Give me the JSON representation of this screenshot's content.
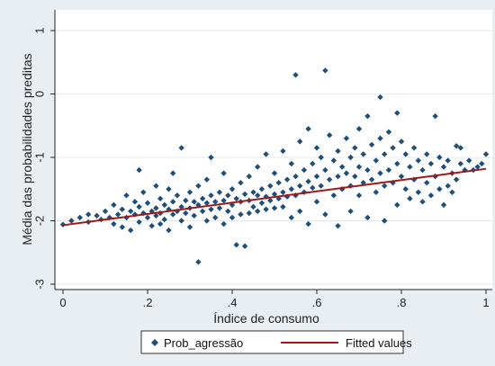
{
  "chart_data": {
    "type": "scatter",
    "title": "",
    "xlabel": "Índice de consumo",
    "ylabel": "Média das probabilidades preditas",
    "xlim": [
      0,
      1
    ],
    "ylim": [
      -3,
      1
    ],
    "x_ticks": [
      {
        "value": 0,
        "label": "0"
      },
      {
        "value": 0.2,
        "label": ".2"
      },
      {
        "value": 0.4,
        "label": ".4"
      },
      {
        "value": 0.6,
        "label": ".6"
      },
      {
        "value": 0.8,
        "label": ".8"
      },
      {
        "value": 1,
        "label": "1"
      }
    ],
    "y_ticks": [
      {
        "value": -3,
        "label": "-3"
      },
      {
        "value": -2,
        "label": "-2"
      },
      {
        "value": -1,
        "label": "-1"
      },
      {
        "value": 0,
        "label": "0"
      },
      {
        "value": 1,
        "label": "1"
      }
    ],
    "grid": true,
    "legend_position": "bottom",
    "series": [
      {
        "name": "Prob_agressão",
        "type": "scatter",
        "marker": "diamond",
        "color": "#1f4e79",
        "points": [
          [
            0.0,
            -2.06
          ],
          [
            0.02,
            -2.0
          ],
          [
            0.04,
            -1.95
          ],
          [
            0.06,
            -2.02
          ],
          [
            0.06,
            -1.9
          ],
          [
            0.08,
            -1.92
          ],
          [
            0.09,
            -1.98
          ],
          [
            0.1,
            -1.85
          ],
          [
            0.11,
            -1.95
          ],
          [
            0.12,
            -2.05
          ],
          [
            0.12,
            -1.75
          ],
          [
            0.13,
            -1.9
          ],
          [
            0.14,
            -1.82
          ],
          [
            0.14,
            -2.1
          ],
          [
            0.15,
            -1.6
          ],
          [
            0.15,
            -1.95
          ],
          [
            0.16,
            -1.85
          ],
          [
            0.16,
            -2.15
          ],
          [
            0.17,
            -1.7
          ],
          [
            0.17,
            -1.9
          ],
          [
            0.18,
            -1.2
          ],
          [
            0.18,
            -1.78
          ],
          [
            0.18,
            -2.02
          ],
          [
            0.19,
            -1.88
          ],
          [
            0.19,
            -1.55
          ],
          [
            0.2,
            -1.95
          ],
          [
            0.2,
            -1.72
          ],
          [
            0.21,
            -1.85
          ],
          [
            0.21,
            -2.08
          ],
          [
            0.22,
            -1.45
          ],
          [
            0.22,
            -1.8
          ],
          [
            0.22,
            -1.92
          ],
          [
            0.23,
            -1.65
          ],
          [
            0.23,
            -1.88
          ],
          [
            0.23,
            -2.05
          ],
          [
            0.24,
            -1.75
          ],
          [
            0.24,
            -1.98
          ],
          [
            0.25,
            -1.5
          ],
          [
            0.25,
            -1.82
          ],
          [
            0.25,
            -2.15
          ],
          [
            0.26,
            -1.7
          ],
          [
            0.26,
            -1.9
          ],
          [
            0.26,
            -1.25
          ],
          [
            0.27,
            -1.85
          ],
          [
            0.27,
            -1.6
          ],
          [
            0.28,
            -1.78
          ],
          [
            0.28,
            -2.0
          ],
          [
            0.28,
            -0.85
          ],
          [
            0.29,
            -1.68
          ],
          [
            0.29,
            -1.88
          ],
          [
            0.3,
            -1.55
          ],
          [
            0.3,
            -1.8
          ],
          [
            0.3,
            -2.1
          ],
          [
            0.31,
            -1.7
          ],
          [
            0.31,
            -1.92
          ],
          [
            0.32,
            -1.45
          ],
          [
            0.32,
            -1.75
          ],
          [
            0.32,
            -2.65
          ],
          [
            0.33,
            -1.65
          ],
          [
            0.33,
            -1.85
          ],
          [
            0.34,
            -1.35
          ],
          [
            0.34,
            -1.72
          ],
          [
            0.34,
            -2.0
          ],
          [
            0.35,
            -1.6
          ],
          [
            0.35,
            -1.82
          ],
          [
            0.35,
            -1.0
          ],
          [
            0.36,
            -1.7
          ],
          [
            0.36,
            -1.95
          ],
          [
            0.37,
            -1.55
          ],
          [
            0.37,
            -1.8
          ],
          [
            0.38,
            -1.25
          ],
          [
            0.38,
            -1.68
          ],
          [
            0.38,
            -2.05
          ],
          [
            0.39,
            -1.6
          ],
          [
            0.39,
            -1.85
          ],
          [
            0.4,
            -1.5
          ],
          [
            0.4,
            -1.75
          ],
          [
            0.4,
            -1.95
          ],
          [
            0.41,
            -1.65
          ],
          [
            0.41,
            -2.38
          ],
          [
            0.42,
            -1.4
          ],
          [
            0.42,
            -1.7
          ],
          [
            0.42,
            -1.9
          ],
          [
            0.43,
            -1.58
          ],
          [
            0.43,
            -2.4
          ],
          [
            0.44,
            -1.3
          ],
          [
            0.44,
            -1.68
          ],
          [
            0.44,
            -1.88
          ],
          [
            0.45,
            -1.55
          ],
          [
            0.45,
            -1.78
          ],
          [
            0.46,
            -1.15
          ],
          [
            0.46,
            -1.6
          ],
          [
            0.46,
            -1.85
          ],
          [
            0.47,
            -1.5
          ],
          [
            0.47,
            -1.72
          ],
          [
            0.48,
            -0.95
          ],
          [
            0.48,
            -1.62
          ],
          [
            0.48,
            -1.82
          ],
          [
            0.49,
            -1.45
          ],
          [
            0.49,
            -1.68
          ],
          [
            0.5,
            -1.25
          ],
          [
            0.5,
            -1.58
          ],
          [
            0.5,
            -1.8
          ],
          [
            0.51,
            -1.4
          ],
          [
            0.51,
            -1.65
          ],
          [
            0.52,
            -0.9
          ],
          [
            0.52,
            -1.55
          ],
          [
            0.52,
            -1.78
          ],
          [
            0.53,
            -1.35
          ],
          [
            0.53,
            -1.62
          ],
          [
            0.54,
            -1.1
          ],
          [
            0.54,
            -1.5
          ],
          [
            0.54,
            -1.95
          ],
          [
            0.55,
            0.3
          ],
          [
            0.55,
            -1.3
          ],
          [
            0.55,
            -1.6
          ],
          [
            0.56,
            -0.75
          ],
          [
            0.56,
            -1.45
          ],
          [
            0.56,
            -1.85
          ],
          [
            0.57,
            -1.2
          ],
          [
            0.57,
            -1.55
          ],
          [
            0.58,
            -0.55
          ],
          [
            0.58,
            -1.38
          ],
          [
            0.58,
            -2.05
          ],
          [
            0.59,
            -1.1
          ],
          [
            0.59,
            -1.48
          ],
          [
            0.6,
            -0.85
          ],
          [
            0.6,
            -1.3
          ],
          [
            0.6,
            -1.7
          ],
          [
            0.61,
            -1.0
          ],
          [
            0.61,
            -1.45
          ],
          [
            0.62,
            0.37
          ],
          [
            0.62,
            -1.2
          ],
          [
            0.62,
            -1.9
          ],
          [
            0.63,
            -0.65
          ],
          [
            0.63,
            -1.35
          ],
          [
            0.64,
            -1.05
          ],
          [
            0.64,
            -1.6
          ],
          [
            0.65,
            -0.9
          ],
          [
            0.65,
            -1.3
          ],
          [
            0.65,
            -2.08
          ],
          [
            0.66,
            -1.15
          ],
          [
            0.66,
            -1.5
          ],
          [
            0.67,
            -0.7
          ],
          [
            0.67,
            -1.25
          ],
          [
            0.68,
            -1.0
          ],
          [
            0.68,
            -1.45
          ],
          [
            0.68,
            -1.85
          ],
          [
            0.69,
            -0.85
          ],
          [
            0.69,
            -1.3
          ],
          [
            0.7,
            -0.55
          ],
          [
            0.7,
            -1.15
          ],
          [
            0.7,
            -1.6
          ],
          [
            0.71,
            -0.95
          ],
          [
            0.71,
            -1.4
          ],
          [
            0.72,
            -0.35
          ],
          [
            0.72,
            -1.2
          ],
          [
            0.72,
            -1.95
          ],
          [
            0.73,
            -0.8
          ],
          [
            0.73,
            -1.35
          ],
          [
            0.74,
            -1.05
          ],
          [
            0.74,
            -1.55
          ],
          [
            0.75,
            -0.05
          ],
          [
            0.75,
            -0.7
          ],
          [
            0.75,
            -1.25
          ],
          [
            0.76,
            -0.95
          ],
          [
            0.76,
            -1.45
          ],
          [
            0.76,
            -2.0
          ],
          [
            0.77,
            -0.6
          ],
          [
            0.77,
            -1.2
          ],
          [
            0.78,
            -0.85
          ],
          [
            0.78,
            -1.4
          ],
          [
            0.79,
            -0.3
          ],
          [
            0.79,
            -1.1
          ],
          [
            0.79,
            -1.75
          ],
          [
            0.8,
            -0.75
          ],
          [
            0.8,
            -1.3
          ],
          [
            0.81,
            -0.95
          ],
          [
            0.81,
            -1.5
          ],
          [
            0.82,
            -1.15
          ],
          [
            0.82,
            -1.65
          ],
          [
            0.83,
            -0.85
          ],
          [
            0.83,
            -1.35
          ],
          [
            0.84,
            -1.05
          ],
          [
            0.84,
            -1.55
          ],
          [
            0.85,
            -1.2
          ],
          [
            0.85,
            -1.7
          ],
          [
            0.86,
            -0.95
          ],
          [
            0.86,
            -1.4
          ],
          [
            0.87,
            -1.1
          ],
          [
            0.87,
            -1.6
          ],
          [
            0.88,
            -0.35
          ],
          [
            0.88,
            -1.3
          ],
          [
            0.89,
            -1.0
          ],
          [
            0.89,
            -1.5
          ],
          [
            0.9,
            -1.15
          ],
          [
            0.9,
            -1.75
          ],
          [
            0.91,
            -1.05
          ],
          [
            0.91,
            -1.45
          ],
          [
            0.92,
            -1.25
          ],
          [
            0.92,
            -1.55
          ],
          [
            0.93,
            -0.82
          ],
          [
            0.93,
            -1.35
          ],
          [
            0.94,
            -1.1
          ],
          [
            0.94,
            -0.85
          ],
          [
            0.95,
            -1.2
          ],
          [
            0.96,
            -1.05
          ],
          [
            0.97,
            -1.2
          ],
          [
            0.98,
            -1.15
          ],
          [
            0.99,
            -1.1
          ],
          [
            1.0,
            -0.95
          ]
        ]
      },
      {
        "name": "Fitted values",
        "type": "line",
        "color": "#a01818",
        "points": [
          [
            0.0,
            -2.07
          ],
          [
            1.0,
            -1.18
          ]
        ]
      }
    ]
  }
}
